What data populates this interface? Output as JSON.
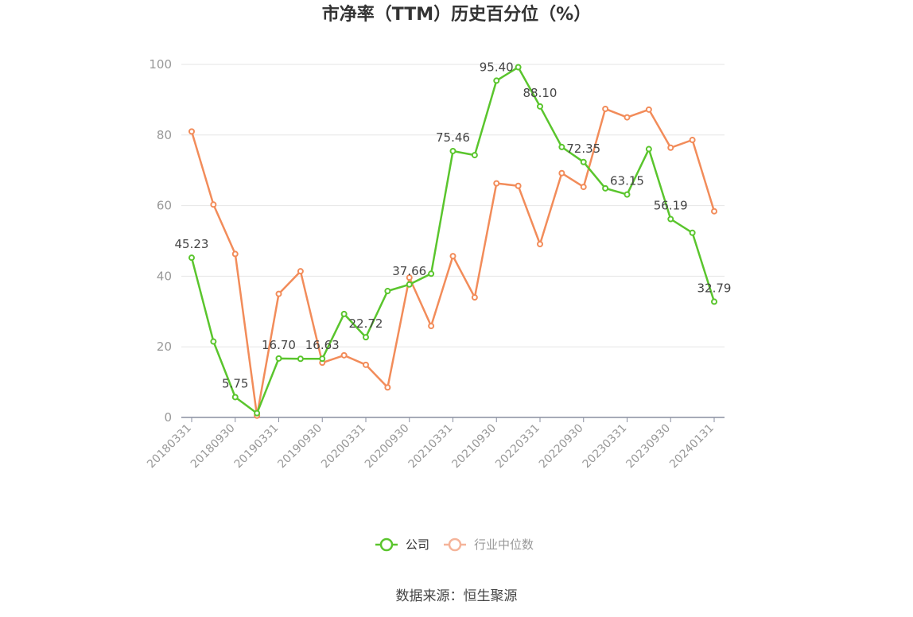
{
  "chart_data": {
    "type": "line",
    "title": "市净率（TTM）历史百分位（%）",
    "ylim": [
      0,
      100
    ],
    "yticks": [
      0,
      20,
      40,
      60,
      80,
      100
    ],
    "grid": true,
    "legend_position": "bottom",
    "x": [
      "20180331",
      "20180630",
      "20180930",
      "20181231",
      "20190331",
      "20190630",
      "20190930",
      "20191231",
      "20200331",
      "20200630",
      "20200930",
      "20201231",
      "20210331",
      "20210630",
      "20210930",
      "20211231",
      "20220331",
      "20220630",
      "20220930",
      "20221231",
      "20230331",
      "20230630",
      "20230930",
      "20231231",
      "20240131"
    ],
    "x_tick_labels": [
      "20180331",
      "20180930",
      "20190331",
      "20190930",
      "20200331",
      "20200930",
      "20210331",
      "20210930",
      "20220331",
      "20220930",
      "20230331",
      "20230930",
      "20240131"
    ],
    "x_tick_indices": [
      0,
      2,
      4,
      6,
      8,
      10,
      12,
      14,
      16,
      18,
      20,
      22,
      24
    ],
    "series": [
      {
        "name": "公司",
        "color": "#5ac52d",
        "values": [
          45.23,
          21.5,
          5.75,
          1.2,
          16.7,
          16.6,
          16.63,
          29.3,
          22.72,
          35.8,
          37.66,
          40.7,
          75.46,
          74.3,
          95.4,
          99.2,
          88.1,
          76.6,
          72.35,
          64.9,
          63.15,
          76.0,
          56.19,
          52.3,
          32.79
        ],
        "labels": {
          "0": "45.23",
          "2": "5.75",
          "4": "16.70",
          "6": "16.63",
          "8": "22.72",
          "10": "37.66",
          "12": "75.46",
          "14": "95.40",
          "16": "88.10",
          "18": "72.35",
          "20": "63.15",
          "22": "56.19",
          "24": "32.79"
        }
      },
      {
        "name": "行业中位数",
        "color": "#f28c5a",
        "values": [
          81.0,
          60.3,
          46.3,
          0.5,
          35.0,
          41.4,
          15.5,
          17.6,
          14.9,
          8.5,
          39.6,
          25.9,
          45.7,
          34.0,
          66.3,
          65.6,
          49.1,
          69.2,
          65.3,
          87.4,
          85.0,
          87.2,
          76.4,
          78.6,
          58.4
        ],
        "labels": {}
      }
    ]
  },
  "source_text": "数据来源：恒生聚源"
}
